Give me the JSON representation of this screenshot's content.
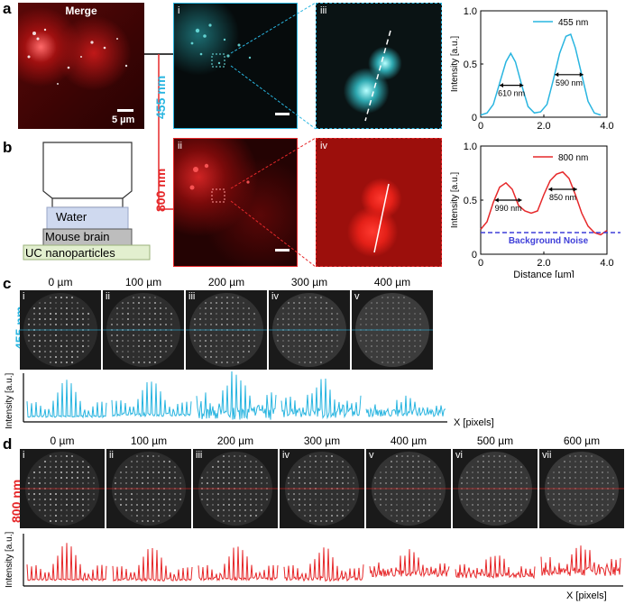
{
  "panels": {
    "a": "a",
    "b": "b",
    "c": "c",
    "d": "d"
  },
  "merge": {
    "title": "Merge",
    "scale": "5 µm"
  },
  "wavelengths": {
    "blue": "455 nm",
    "red": "800 nm"
  },
  "roman": {
    "i": "i",
    "ii": "ii",
    "iii": "iii",
    "iv": "iv",
    "v": "v",
    "vi": "vi",
    "vii": "vii"
  },
  "schematic": {
    "water": "Water",
    "brain": "Mouse brain",
    "uc": "UC nanoparticles"
  },
  "colors": {
    "blue": "#29b5e0",
    "red": "#e6282a",
    "noise": "#3f3fd9"
  },
  "plot_blue": {
    "legend": "455 nm",
    "ylabel": "Intensity [a.u.]",
    "yticks": [
      "1.0",
      "0.5",
      "0"
    ],
    "xticks": [
      "0",
      "2.0",
      "4.0"
    ],
    "ann1": "610 nm",
    "ann2": "590 nm"
  },
  "plot_red": {
    "legend": "800 nm",
    "ylabel": "Intensity [a.u.]",
    "xlabel": "Distance [µm]",
    "yticks": [
      "1.0",
      "0.5",
      "0"
    ],
    "xticks": [
      "0",
      "2.0",
      "4.0"
    ],
    "ann1": "990 nm",
    "ann2": "850 nm",
    "noise": "Background Noise"
  },
  "depths_c": [
    "0 µm",
    "100 µm",
    "200 µm",
    "300 µm",
    "400 µm"
  ],
  "depths_d": [
    "0 µm",
    "100 µm",
    "200 µm",
    "300 µm",
    "400 µm",
    "500 µm",
    "600 µm"
  ],
  "roman_c": [
    "i",
    "ii",
    "iii",
    "iv",
    "v"
  ],
  "roman_d": [
    "i",
    "ii",
    "iii",
    "iv",
    "v",
    "vi",
    "vii"
  ],
  "axis": {
    "ylabel": "Intensity [a.u.]",
    "xlabel": "X [pixels]"
  },
  "chart_data": [
    {
      "type": "line",
      "title": "",
      "xlabel": "",
      "ylabel": "Intensity [a.u.]",
      "xlim": [
        0,
        4.0
      ],
      "ylim": [
        0,
        1.0
      ],
      "series": [
        {
          "name": "455 nm",
          "x": [
            0,
            0.2,
            0.4,
            0.6,
            0.8,
            0.95,
            1.1,
            1.3,
            1.5,
            1.7,
            1.9,
            2.1,
            2.3,
            2.5,
            2.7,
            2.85,
            3.0,
            3.2,
            3.4,
            3.6,
            3.8
          ],
          "y": [
            0.02,
            0.04,
            0.12,
            0.32,
            0.52,
            0.6,
            0.52,
            0.3,
            0.1,
            0.04,
            0.05,
            0.12,
            0.35,
            0.6,
            0.76,
            0.78,
            0.65,
            0.4,
            0.15,
            0.04,
            0.02
          ]
        }
      ],
      "annotations": [
        "610 nm",
        "590 nm"
      ]
    },
    {
      "type": "line",
      "title": "",
      "xlabel": "Distance [µm]",
      "ylabel": "Intensity [a.u.]",
      "xlim": [
        0,
        4.0
      ],
      "ylim": [
        0,
        1.0
      ],
      "series": [
        {
          "name": "800 nm",
          "x": [
            0,
            0.2,
            0.4,
            0.6,
            0.8,
            1.0,
            1.2,
            1.4,
            1.6,
            1.8,
            2.0,
            2.2,
            2.4,
            2.6,
            2.8,
            3.0,
            3.2,
            3.4,
            3.6,
            3.8,
            4.0
          ],
          "y": [
            0.23,
            0.3,
            0.48,
            0.62,
            0.66,
            0.6,
            0.45,
            0.4,
            0.38,
            0.4,
            0.55,
            0.68,
            0.74,
            0.76,
            0.7,
            0.55,
            0.38,
            0.26,
            0.2,
            0.18,
            0.22
          ]
        }
      ],
      "reference_line": {
        "name": "Background Noise",
        "y": 0.2
      },
      "annotations": [
        "990 nm",
        "850 nm"
      ]
    }
  ]
}
